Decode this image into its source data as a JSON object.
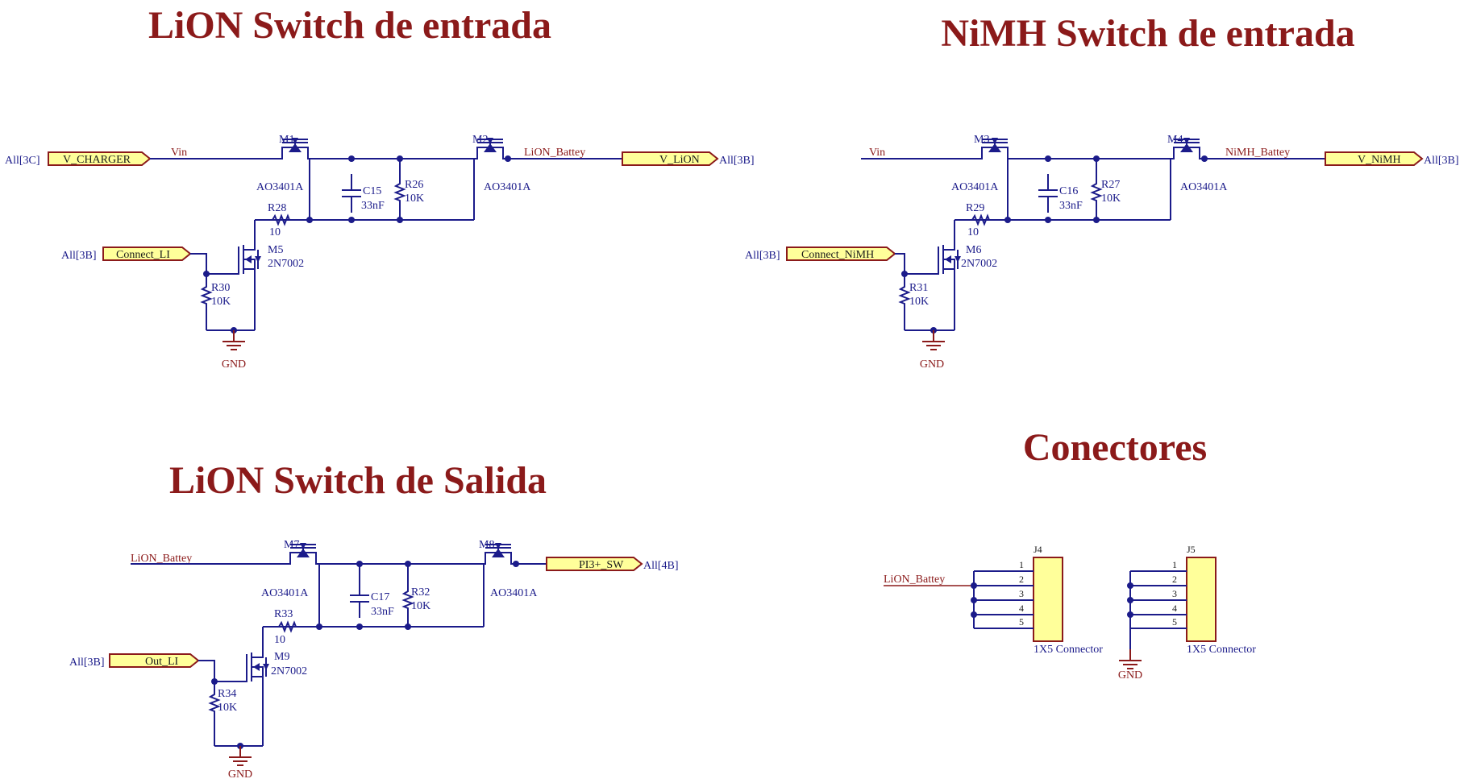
{
  "titles": {
    "lion_in": "LiON  Switch de entrada",
    "nimh_in": "NiMH  Switch de entrada",
    "lion_out": "LiON  Switch de Salida",
    "connectors": "Conectores"
  },
  "lion_in": {
    "ref_left": "All[3C]",
    "port_in": "V_CHARGER",
    "net_vin": "Vin",
    "m1": "M1",
    "m1_part": "AO3401A",
    "m2": "M2",
    "m2_part": "AO3401A",
    "net_out": "LiON_Battey",
    "port_out": "V_LiON",
    "ref_right": "All[3B]",
    "c": "C15",
    "c_val": "33nF",
    "r_a": "R26",
    "r_a_val": "10K",
    "r_gate": "R28",
    "r_gate_val": "10",
    "ref_ctrl": "All[3B]",
    "port_ctrl": "Connect_LI",
    "m_ctrl": "M5",
    "m_ctrl_part": "2N7002",
    "r_pd": "R30",
    "r_pd_val": "10K",
    "gnd": "GND"
  },
  "nimh_in": {
    "net_vin": "Vin",
    "m1": "M3",
    "m1_part": "AO3401A",
    "m2": "M4",
    "m2_part": "AO3401A",
    "net_out": "NiMH_Battey",
    "port_out": "V_NiMH",
    "ref_right": "All[3B]",
    "c": "C16",
    "c_val": "33nF",
    "r_a": "R27",
    "r_a_val": "10K",
    "r_gate": "R29",
    "r_gate_val": "10",
    "ref_ctrl": "All[3B]",
    "port_ctrl": "Connect_NiMH",
    "m_ctrl": "M6",
    "m_ctrl_part": "2N7002",
    "r_pd": "R31",
    "r_pd_val": "10K",
    "gnd": "GND"
  },
  "lion_out": {
    "net_in": "LiON_Battey",
    "m1": "M7",
    "m1_part": "AO3401A",
    "m2": "M8",
    "m2_part": "AO3401A",
    "port_out": "PI3+_SW",
    "ref_right": "All[4B]",
    "c": "C17",
    "c_val": "33nF",
    "r_a": "R32",
    "r_a_val": "10K",
    "r_gate": "R33",
    "r_gate_val": "10",
    "ref_ctrl": "All[3B]",
    "port_ctrl": "Out_LI",
    "m_ctrl": "M9",
    "m_ctrl_part": "2N7002",
    "r_pd": "R34",
    "r_pd_val": "10K",
    "gnd": "GND"
  },
  "connectors": {
    "net_in": "LiON_Battey",
    "j4": "J4",
    "j4_part": "1X5 Connector",
    "j5": "J5",
    "j5_part": "1X5 Connector",
    "pins": [
      "1",
      "2",
      "3",
      "4",
      "5"
    ],
    "gnd": "GND"
  },
  "colors": {
    "title": "#8b1a1a",
    "wire": "#1b1b8a",
    "port_fill": "#ffff9a",
    "port_stroke": "#8b1a1a"
  }
}
